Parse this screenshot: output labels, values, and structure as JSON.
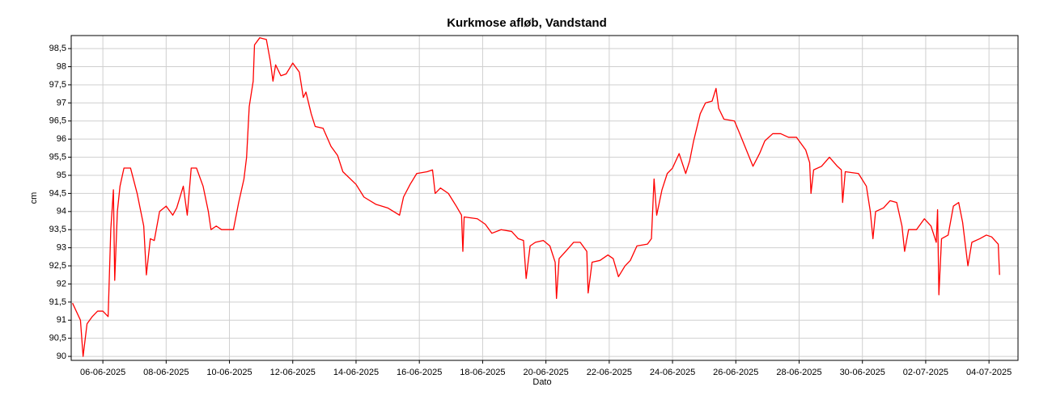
{
  "chart_data": {
    "type": "line",
    "title": "Kurkmose afløb, Vandstand",
    "xlabel": "Dato",
    "ylabel": "cm",
    "color": "#ff0000",
    "grid": true,
    "xlim": [
      "2025-06-05T00:00",
      "2025-07-04T22:00"
    ],
    "xticks": [
      {
        "value": "2025-06-06T00:00",
        "label": "06-06-2025"
      },
      {
        "value": "2025-06-08T00:00",
        "label": "08-06-2025"
      },
      {
        "value": "2025-06-10T00:00",
        "label": "10-06-2025"
      },
      {
        "value": "2025-06-12T00:00",
        "label": "12-06-2025"
      },
      {
        "value": "2025-06-14T00:00",
        "label": "14-06-2025"
      },
      {
        "value": "2025-06-16T00:00",
        "label": "16-06-2025"
      },
      {
        "value": "2025-06-18T00:00",
        "label": "18-06-2025"
      },
      {
        "value": "2025-06-20T00:00",
        "label": "20-06-2025"
      },
      {
        "value": "2025-06-22T00:00",
        "label": "22-06-2025"
      },
      {
        "value": "2025-06-24T00:00",
        "label": "24-06-2025"
      },
      {
        "value": "2025-06-26T00:00",
        "label": "26-06-2025"
      },
      {
        "value": "2025-06-28T00:00",
        "label": "28-06-2025"
      },
      {
        "value": "2025-06-30T00:00",
        "label": "30-06-2025"
      },
      {
        "value": "2025-07-02T00:00",
        "label": "02-07-2025"
      },
      {
        "value": "2025-07-04T00:00",
        "label": "04-07-2025"
      }
    ],
    "ylim": [
      89.89,
      98.86
    ],
    "yticks": [
      90,
      {
        "value": 90.5,
        "label": "90,5"
      },
      91,
      {
        "value": 91.5,
        "label": "91,5"
      },
      92,
      {
        "value": 92.5,
        "label": "92,5"
      },
      93,
      {
        "value": 93.5,
        "label": "93,5"
      },
      94,
      {
        "value": 94.5,
        "label": "94,5"
      },
      95,
      {
        "value": 95.5,
        "label": "95,5"
      },
      96,
      {
        "value": 96.5,
        "label": "96,5"
      },
      97,
      {
        "value": 97.5,
        "label": "97,5"
      },
      98,
      {
        "value": 98.5,
        "label": "98,5"
      }
    ],
    "x": [
      "2025-06-05T01:00",
      "2025-06-05T07:00",
      "2025-06-05T09:00",
      "2025-06-05T12:00",
      "2025-06-05T16:00",
      "2025-06-05T20:00",
      "2025-06-06T00:00",
      "2025-06-06T04:00",
      "2025-06-06T06:00",
      "2025-06-06T08:00",
      "2025-06-06T09:00",
      "2025-06-06T11:00",
      "2025-06-06T13:00",
      "2025-06-06T16:00",
      "2025-06-06T21:00",
      "2025-06-07T02:00",
      "2025-06-07T07:00",
      "2025-06-07T09:00",
      "2025-06-07T12:00",
      "2025-06-07T15:00",
      "2025-06-07T19:00",
      "2025-06-08T00:00",
      "2025-06-08T05:00",
      "2025-06-08T08:00",
      "2025-06-08T13:00",
      "2025-06-08T16:00",
      "2025-06-08T19:00",
      "2025-06-08T23:00",
      "2025-06-09T04:00",
      "2025-06-09T08:00",
      "2025-06-09T10:00",
      "2025-06-09T14:00",
      "2025-06-09T18:00",
      "2025-06-10T03:00",
      "2025-06-10T07:00",
      "2025-06-10T11:00",
      "2025-06-10T13:00",
      "2025-06-10T15:00",
      "2025-06-10T18:00",
      "2025-06-10T19:00",
      "2025-06-10T23:00",
      "2025-06-11T04:00",
      "2025-06-11T07:00",
      "2025-06-11T09:00",
      "2025-06-11T11:00",
      "2025-06-11T15:00",
      "2025-06-11T19:00",
      "2025-06-12T00:00",
      "2025-06-12T05:00",
      "2025-06-12T08:00",
      "2025-06-12T10:00",
      "2025-06-12T14:00",
      "2025-06-12T17:00",
      "2025-06-12T23:00",
      "2025-06-13T05:00",
      "2025-06-13T10:00",
      "2025-06-13T14:00",
      "2025-06-14T00:00",
      "2025-06-14T06:00",
      "2025-06-14T15:00",
      "2025-06-15T00:00",
      "2025-06-15T09:00",
      "2025-06-15T12:00",
      "2025-06-15T17:00",
      "2025-06-15T22:00",
      "2025-06-16T06:00",
      "2025-06-16T10:00",
      "2025-06-16T12:00",
      "2025-06-16T16:00",
      "2025-06-16T22:00",
      "2025-06-17T04:00",
      "2025-06-17T08:00",
      "2025-06-17T09:00",
      "2025-06-17T10:00",
      "2025-06-17T20:00",
      "2025-06-18T02:00",
      "2025-06-18T07:00",
      "2025-06-18T14:00",
      "2025-06-18T22:00",
      "2025-06-19T03:00",
      "2025-06-19T07:00",
      "2025-06-19T09:00",
      "2025-06-19T12:00",
      "2025-06-19T16:00",
      "2025-06-19T22:00",
      "2025-06-20T03:00",
      "2025-06-20T07:00",
      "2025-06-20T08:00",
      "2025-06-20T10:00",
      "2025-06-20T15:00",
      "2025-06-20T21:00",
      "2025-06-21T02:00",
      "2025-06-21T07:00",
      "2025-06-21T08:00",
      "2025-06-21T11:00",
      "2025-06-21T17:00",
      "2025-06-21T23:00",
      "2025-06-22T03:00",
      "2025-06-22T07:00",
      "2025-06-22T12:00",
      "2025-06-22T16:00",
      "2025-06-22T21:00",
      "2025-06-23T05:00",
      "2025-06-23T08:00",
      "2025-06-23T10:00",
      "2025-06-23T12:00",
      "2025-06-23T16:00",
      "2025-06-23T20:00",
      "2025-06-24T00:00",
      "2025-06-24T05:00",
      "2025-06-24T10:00",
      "2025-06-24T13:00",
      "2025-06-24T16:00",
      "2025-06-24T21:00",
      "2025-06-25T01:00",
      "2025-06-25T06:00",
      "2025-06-25T09:00",
      "2025-06-25T11:00",
      "2025-06-25T15:00",
      "2025-06-25T23:00",
      "2025-06-26T03:00",
      "2025-06-26T08:00",
      "2025-06-26T13:00",
      "2025-06-26T18:00",
      "2025-06-26T22:00",
      "2025-06-27T04:00",
      "2025-06-27T10:00",
      "2025-06-27T16:00",
      "2025-06-27T22:00",
      "2025-06-28T05:00",
      "2025-06-28T08:00",
      "2025-06-28T09:00",
      "2025-06-28T11:00",
      "2025-06-28T17:00",
      "2025-06-28T23:00",
      "2025-06-29T05:00",
      "2025-06-29T08:00",
      "2025-06-29T09:00",
      "2025-06-29T11:00",
      "2025-06-29T21:00",
      "2025-06-30T03:00",
      "2025-06-30T06:00",
      "2025-06-30T08:00",
      "2025-06-30T10:00",
      "2025-06-30T16:00",
      "2025-06-30T21:00",
      "2025-07-01T02:00",
      "2025-07-01T06:00",
      "2025-07-01T08:00",
      "2025-07-01T11:00",
      "2025-07-01T17:00",
      "2025-07-01T23:00",
      "2025-07-02T04:00",
      "2025-07-02T08:00",
      "2025-07-02T09:00",
      "2025-07-02T10:00",
      "2025-07-02T12:00",
      "2025-07-02T17:00",
      "2025-07-02T21:00",
      "2025-07-03T01:00",
      "2025-07-03T04:00",
      "2025-07-03T08:00",
      "2025-07-03T11:00",
      "2025-07-03T17:00",
      "2025-07-03T22:00",
      "2025-07-04T02:00",
      "2025-07-04T07:00",
      "2025-07-04T08:00"
    ],
    "values": [
      91.47,
      91.0,
      90.0,
      90.9,
      91.1,
      91.25,
      91.25,
      91.1,
      93.5,
      94.6,
      92.1,
      94.0,
      94.7,
      95.2,
      95.2,
      94.5,
      93.6,
      92.25,
      93.25,
      93.2,
      94.0,
      94.15,
      93.9,
      94.1,
      94.7,
      93.9,
      95.2,
      95.2,
      94.7,
      94.0,
      93.5,
      93.6,
      93.5,
      93.5,
      94.25,
      94.9,
      95.5,
      96.9,
      97.6,
      98.6,
      98.8,
      98.75,
      98.15,
      97.6,
      98.05,
      97.75,
      97.8,
      98.1,
      97.85,
      97.15,
      97.3,
      96.7,
      96.35,
      96.3,
      95.8,
      95.55,
      95.1,
      94.75,
      94.4,
      94.2,
      94.1,
      93.9,
      94.4,
      94.75,
      95.05,
      95.1,
      95.15,
      94.5,
      94.65,
      94.5,
      94.15,
      93.9,
      92.9,
      93.85,
      93.8,
      93.65,
      93.4,
      93.5,
      93.45,
      93.25,
      93.2,
      92.15,
      93.05,
      93.15,
      93.2,
      93.05,
      92.6,
      91.6,
      92.7,
      92.9,
      93.15,
      93.15,
      92.9,
      91.75,
      92.6,
      92.65,
      92.8,
      92.7,
      92.2,
      92.5,
      92.65,
      93.05,
      93.1,
      93.25,
      94.9,
      93.9,
      94.6,
      95.05,
      95.2,
      95.6,
      95.05,
      95.4,
      95.95,
      96.7,
      97.0,
      97.05,
      97.4,
      96.85,
      96.55,
      96.5,
      96.15,
      95.7,
      95.25,
      95.6,
      95.95,
      96.15,
      96.15,
      96.05,
      96.05,
      95.7,
      95.35,
      94.5,
      95.15,
      95.25,
      95.5,
      95.25,
      95.15,
      94.25,
      95.1,
      95.05,
      94.7,
      94.0,
      93.25,
      94.0,
      94.1,
      94.3,
      94.25,
      93.6,
      92.9,
      93.5,
      93.5,
      93.8,
      93.6,
      93.15,
      94.05,
      91.7,
      93.25,
      93.35,
      94.15,
      94.25,
      93.7,
      92.5,
      93.15,
      93.25,
      93.35,
      93.3,
      93.1,
      92.25
    ]
  }
}
